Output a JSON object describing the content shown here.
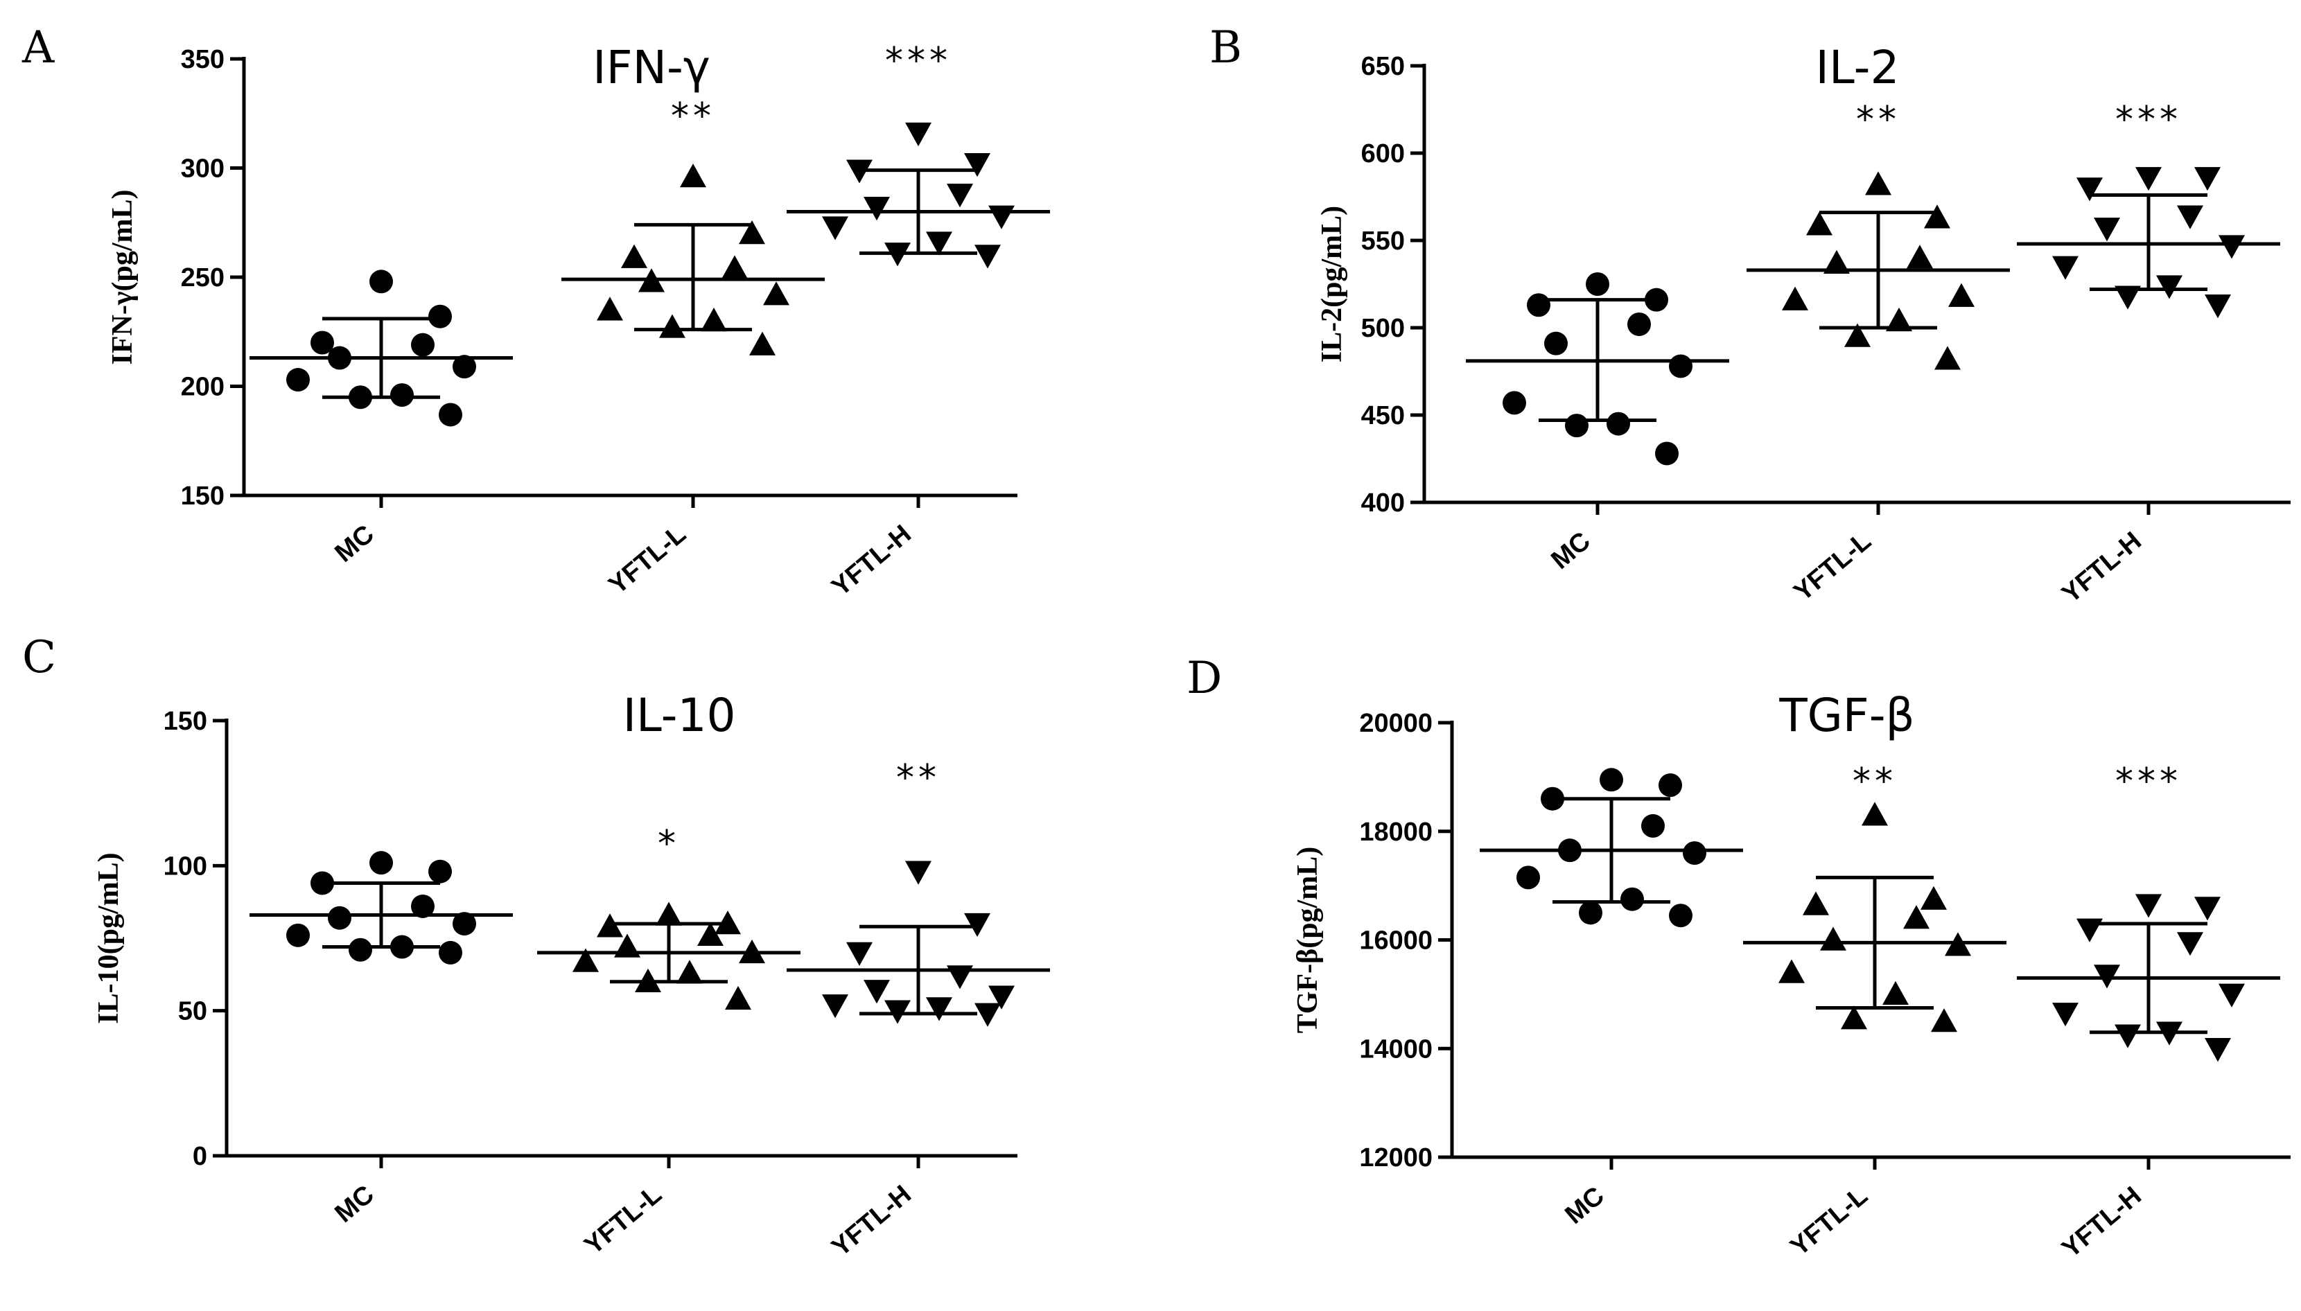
{
  "chart_data": [
    {
      "type": "scatter",
      "panel": "A",
      "title": "IFN-γ",
      "ylabel": "IFN-γ(pg/mL)",
      "xlabel": "",
      "ylim": [
        150,
        350
      ],
      "yticks": [
        150,
        200,
        250,
        300,
        350
      ],
      "categories": [
        "MC",
        "YFTL-L",
        "YFTL-H"
      ],
      "significance": [
        "",
        "**",
        "***"
      ],
      "markers": [
        "circle",
        "triangle-up",
        "triangle-down"
      ],
      "series": [
        {
          "name": "MC",
          "mean": 213,
          "sd_upper": 231,
          "sd_lower": 195,
          "values": [
            248,
            232,
            220,
            219,
            213,
            209,
            203,
            196,
            195,
            187
          ]
        },
        {
          "name": "YFTL-L",
          "mean": 249,
          "sd_upper": 274,
          "sd_lower": 226,
          "values": [
            296,
            270,
            259,
            254,
            248,
            242,
            235,
            230,
            227,
            219
          ]
        },
        {
          "name": "YFTL-H",
          "mean": 280,
          "sd_upper": 299,
          "sd_lower": 261,
          "values": [
            316,
            302,
            299,
            288,
            282,
            278,
            273,
            266,
            261,
            260
          ]
        }
      ]
    },
    {
      "type": "scatter",
      "panel": "B",
      "title": "IL-2",
      "ylabel": "IL-2(pg/mL)",
      "xlabel": "",
      "ylim": [
        400,
        650
      ],
      "yticks": [
        400,
        450,
        500,
        550,
        600,
        650
      ],
      "categories": [
        "MC",
        "YFTL-L",
        "YFTL-H"
      ],
      "significance": [
        "",
        "**",
        "***"
      ],
      "markers": [
        "circle",
        "triangle-up",
        "triangle-down"
      ],
      "series": [
        {
          "name": "MC",
          "mean": 481,
          "sd_upper": 516,
          "sd_lower": 447,
          "values": [
            525,
            516,
            513,
            502,
            491,
            478,
            457,
            445,
            444,
            428
          ]
        },
        {
          "name": "YFTL-L",
          "mean": 533,
          "sd_upper": 566,
          "sd_lower": 500,
          "values": [
            582,
            563,
            559,
            540,
            537,
            518,
            516,
            504,
            495,
            482
          ]
        },
        {
          "name": "YFTL-H",
          "mean": 548,
          "sd_upper": 576,
          "sd_lower": 522,
          "values": [
            586,
            586,
            580,
            564,
            557,
            547,
            535,
            524,
            518,
            513
          ]
        }
      ]
    },
    {
      "type": "scatter",
      "panel": "C",
      "title": "IL-10",
      "ylabel": "IL-10(pg/mL)",
      "xlabel": "",
      "ylim": [
        0,
        150
      ],
      "yticks": [
        0,
        50,
        100,
        150
      ],
      "categories": [
        "MC",
        "YFTL-L",
        "YFTL-H"
      ],
      "significance": [
        "",
        "*",
        "**"
      ],
      "markers": [
        "circle",
        "triangle-up",
        "triangle-down"
      ],
      "series": [
        {
          "name": "MC",
          "mean": 83,
          "sd_upper": 94,
          "sd_lower": 72,
          "values": [
            101,
            98,
            94,
            86,
            82,
            80,
            76,
            72,
            71,
            70
          ]
        },
        {
          "name": "YFTL-L",
          "mean": 70,
          "sd_upper": 80,
          "sd_lower": 60,
          "values": [
            83,
            80,
            79,
            76,
            72,
            70,
            67,
            63,
            60,
            54
          ]
        },
        {
          "name": "YFTL-H",
          "mean": 64,
          "sd_upper": 79,
          "sd_lower": 49,
          "values": [
            98,
            80,
            70,
            62,
            57,
            55,
            52,
            51,
            50,
            49
          ]
        }
      ]
    },
    {
      "type": "scatter",
      "panel": "D",
      "title": "TGF-β",
      "ylabel": "TGF-β(pg/mL)",
      "xlabel": "",
      "ylim": [
        12000,
        20000
      ],
      "yticks": [
        12000,
        14000,
        16000,
        18000,
        20000
      ],
      "categories": [
        "MC",
        "YFTL-L",
        "YFTL-H"
      ],
      "significance": [
        "",
        "**",
        "***"
      ],
      "markers": [
        "circle",
        "triangle-up",
        "triangle-down"
      ],
      "series": [
        {
          "name": "MC",
          "mean": 17650,
          "sd_upper": 18600,
          "sd_lower": 16700,
          "values": [
            18950,
            18850,
            18600,
            18100,
            17650,
            17600,
            17150,
            16750,
            16500,
            16450
          ]
        },
        {
          "name": "YFTL-L",
          "mean": 15950,
          "sd_upper": 17150,
          "sd_lower": 14750,
          "values": [
            18300,
            16750,
            16650,
            16400,
            16000,
            15900,
            15400,
            15000,
            14550,
            14500
          ]
        },
        {
          "name": "YFTL-H",
          "mean": 15300,
          "sd_upper": 16300,
          "sd_lower": 14300,
          "values": [
            16650,
            16600,
            16200,
            15950,
            15350,
            15000,
            14650,
            14300,
            14250,
            14000
          ]
        }
      ]
    }
  ]
}
